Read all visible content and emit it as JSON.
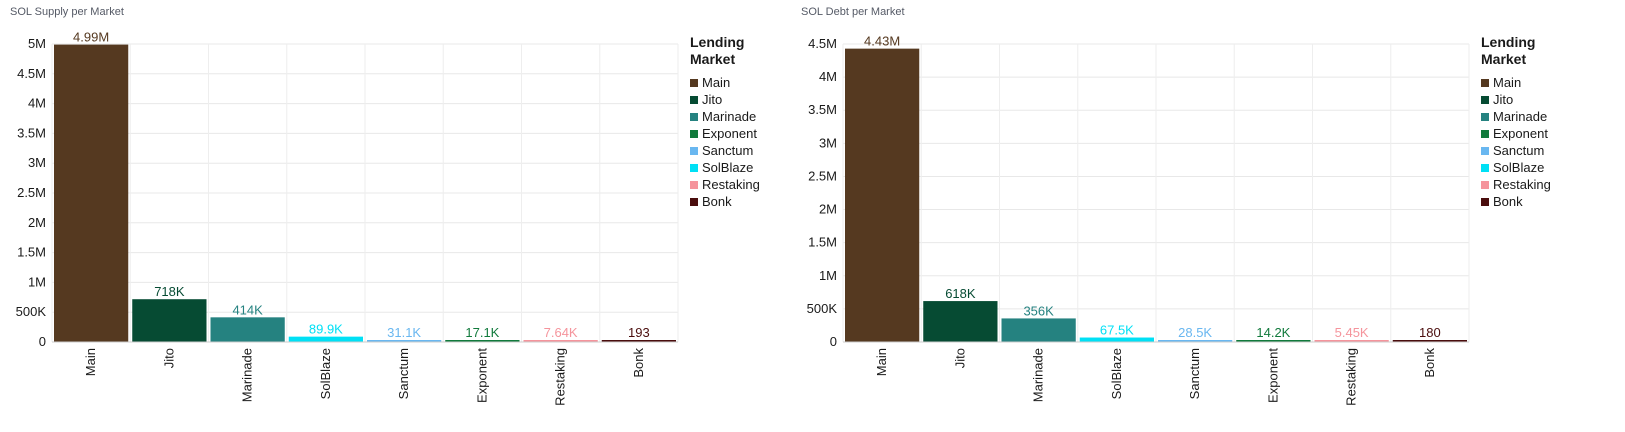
{
  "legend": {
    "title": "Lending Market",
    "items": [
      {
        "label": "Main",
        "color": "#553920"
      },
      {
        "label": "Jito",
        "color": "#064b33"
      },
      {
        "label": "Marinade",
        "color": "#258280"
      },
      {
        "label": "Exponent",
        "color": "#117a3c"
      },
      {
        "label": "Sanctum",
        "color": "#69b7f0"
      },
      {
        "label": "SolBlaze",
        "color": "#00e0f5"
      },
      {
        "label": "Restaking",
        "color": "#f5949c"
      },
      {
        "label": "Bonk",
        "color": "#4a0d0d"
      }
    ]
  },
  "chart_data": [
    {
      "type": "bar",
      "title": "SOL Supply per Market",
      "categories": [
        "Main",
        "Jito",
        "Marinade",
        "SolBlaze",
        "Sanctum",
        "Exponent",
        "Restaking",
        "Bonk"
      ],
      "values": [
        4990000,
        718000,
        414000,
        89900,
        31100,
        17100,
        7640,
        193
      ],
      "data_labels": [
        "4.99M",
        "718K",
        "414K",
        "89.9K",
        "31.1K",
        "17.1K",
        "7.64K",
        "193"
      ],
      "colors": [
        "#553920",
        "#064b33",
        "#258280",
        "#00e0f5",
        "#69b7f0",
        "#117a3c",
        "#f5949c",
        "#4a0d0d"
      ],
      "ylim": [
        0,
        5000000
      ],
      "yticks": [
        0,
        500000,
        1000000,
        1500000,
        2000000,
        2500000,
        3000000,
        3500000,
        4000000,
        4500000,
        5000000
      ],
      "ytick_labels": [
        "0",
        "500K",
        "1M",
        "1.5M",
        "2M",
        "2.5M",
        "3M",
        "3.5M",
        "4M",
        "4.5M",
        "5M"
      ],
      "grid": true,
      "legend_position": "right"
    },
    {
      "type": "bar",
      "title": "SOL Debt per Market",
      "categories": [
        "Main",
        "Jito",
        "Marinade",
        "SolBlaze",
        "Sanctum",
        "Exponent",
        "Restaking",
        "Bonk"
      ],
      "values": [
        4430000,
        618000,
        356000,
        67500,
        28500,
        14200,
        5450,
        180
      ],
      "data_labels": [
        "4.43M",
        "618K",
        "356K",
        "67.5K",
        "28.5K",
        "14.2K",
        "5.45K",
        "180"
      ],
      "colors": [
        "#553920",
        "#064b33",
        "#258280",
        "#00e0f5",
        "#69b7f0",
        "#117a3c",
        "#f5949c",
        "#4a0d0d"
      ],
      "ylim": [
        0,
        4500000
      ],
      "yticks": [
        0,
        500000,
        1000000,
        1500000,
        2000000,
        2500000,
        3000000,
        3500000,
        4000000,
        4500000
      ],
      "ytick_labels": [
        "0",
        "500K",
        "1M",
        "1.5M",
        "2M",
        "2.5M",
        "3M",
        "3.5M",
        "4M",
        "4.5M"
      ],
      "grid": true,
      "legend_position": "right"
    }
  ]
}
